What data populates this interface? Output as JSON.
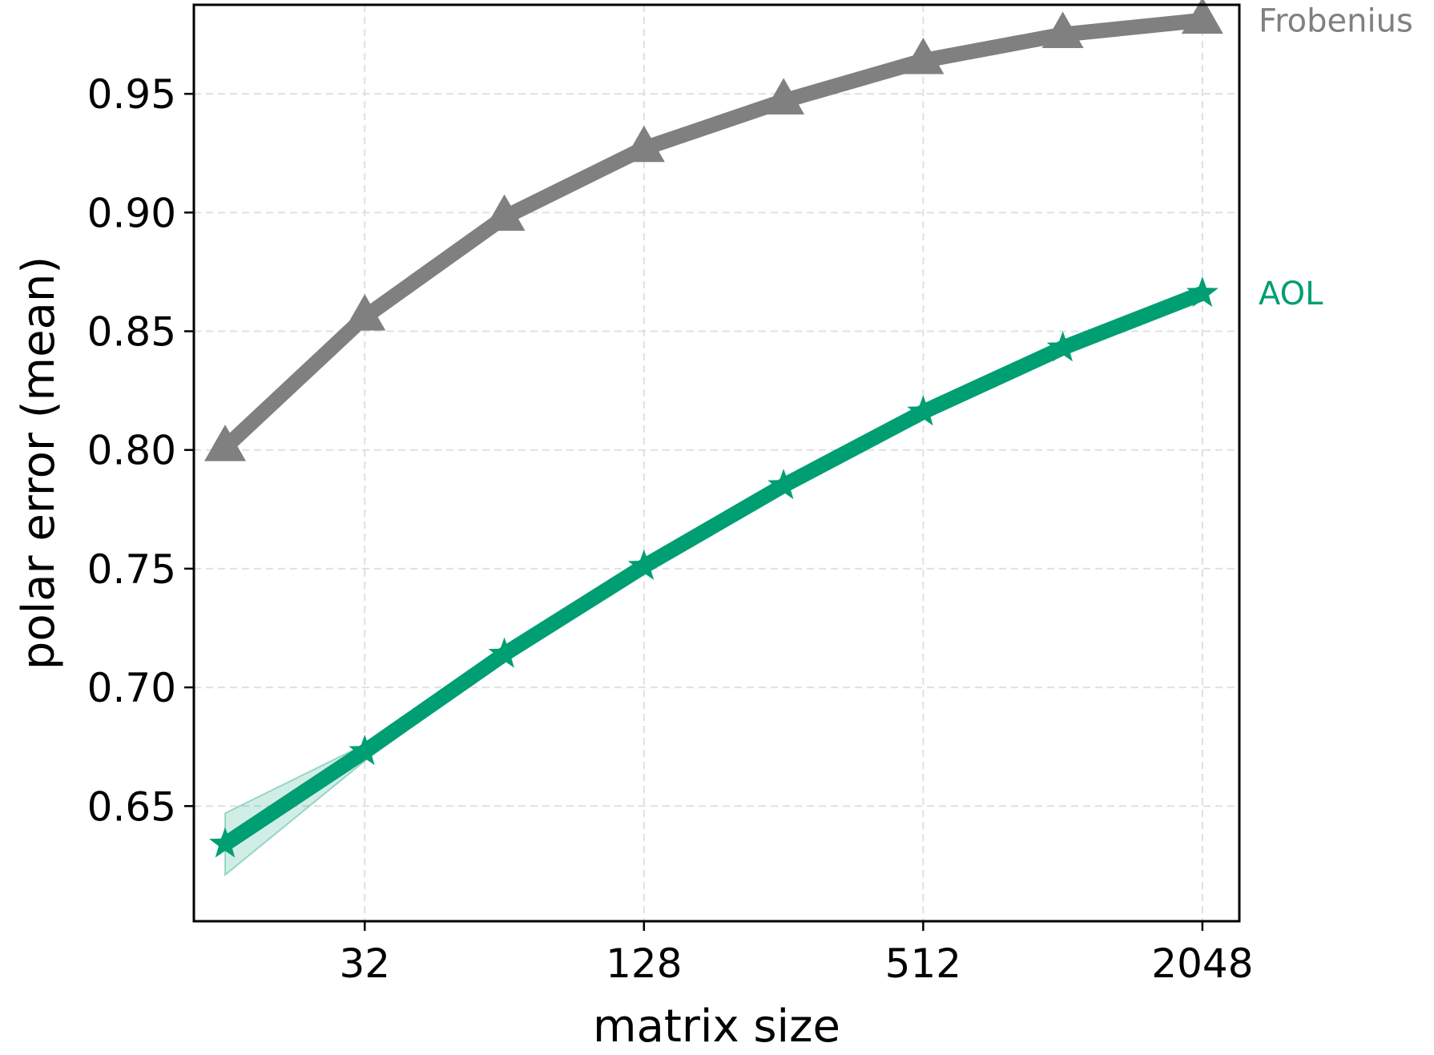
{
  "chart_data": {
    "type": "line",
    "title": "",
    "xlabel": "matrix size",
    "ylabel": "polar error (mean)",
    "x_scale": "log2",
    "x": [
      16,
      32,
      64,
      128,
      256,
      512,
      1024,
      2048
    ],
    "x_ticks": [
      32,
      128,
      512,
      2048
    ],
    "x_tick_labels": [
      "32",
      "128",
      "512",
      "2048"
    ],
    "xlim": [
      13.7,
      2460
    ],
    "ylim": [
      0.6015,
      0.9875
    ],
    "y_ticks": [
      0.65,
      0.7,
      0.75,
      0.8,
      0.85,
      0.9,
      0.95
    ],
    "y_tick_labels": [
      "0.65",
      "0.70",
      "0.75",
      "0.80",
      "0.85",
      "0.90",
      "0.95"
    ],
    "grid": true,
    "legend": "inline labels at right end of each line",
    "series": [
      {
        "name": "Frobenius",
        "color": "#808080",
        "marker": "triangle",
        "values": [
          0.801,
          0.856,
          0.898,
          0.927,
          0.947,
          0.964,
          0.975,
          0.981
        ]
      },
      {
        "name": "AOL",
        "color": "#009e73",
        "marker": "star",
        "values": [
          0.634,
          0.673,
          0.714,
          0.751,
          0.785,
          0.816,
          0.843,
          0.866
        ],
        "band_upper": [
          0.647,
          0.676,
          0.715,
          0.751,
          0.785,
          0.816,
          0.843,
          0.866
        ],
        "band_lower": [
          0.621,
          0.669,
          0.712,
          0.75,
          0.784,
          0.815,
          0.842,
          0.865
        ]
      }
    ]
  }
}
